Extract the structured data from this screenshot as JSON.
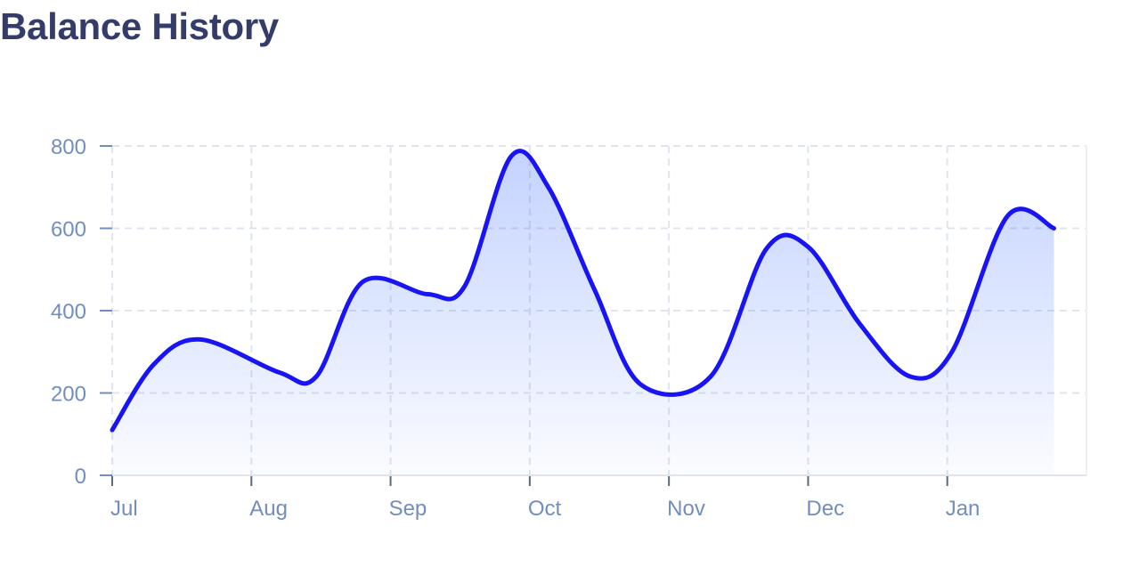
{
  "page": {
    "title": "Balance History"
  },
  "chart_data": {
    "type": "area",
    "title": "",
    "xlabel": "",
    "ylabel": "",
    "categories": [
      "Jul",
      "Aug",
      "Sep",
      "Oct",
      "Nov",
      "Dec",
      "Jan"
    ],
    "ylim": [
      0,
      800
    ],
    "yticks": [
      0,
      200,
      400,
      600,
      800
    ],
    "grid": true,
    "series": [
      {
        "x": [
          "Jul 1",
          "Jul 10",
          "Jul 20",
          "Aug 7",
          "Aug 15",
          "Aug 25",
          "Sep 9",
          "Sep 17",
          "Sep 27",
          "Oct 5",
          "Oct 15",
          "Oct 25",
          "Nov 10",
          "Nov 22",
          "Dec 1",
          "Dec 12",
          "Dec 23",
          "Jan 2",
          "Jan 14",
          "Jan 24"
        ],
        "values": [
          110,
          270,
          330,
          250,
          240,
          470,
          440,
          460,
          775,
          700,
          450,
          220,
          240,
          550,
          555,
          370,
          240,
          300,
          630,
          600
        ]
      }
    ],
    "colors": {
      "line": "#1814f3",
      "area_top": "#2d60ff",
      "grid": "#dfe5ee",
      "axis_text": "#718ebf",
      "title": "#343c6a"
    }
  }
}
